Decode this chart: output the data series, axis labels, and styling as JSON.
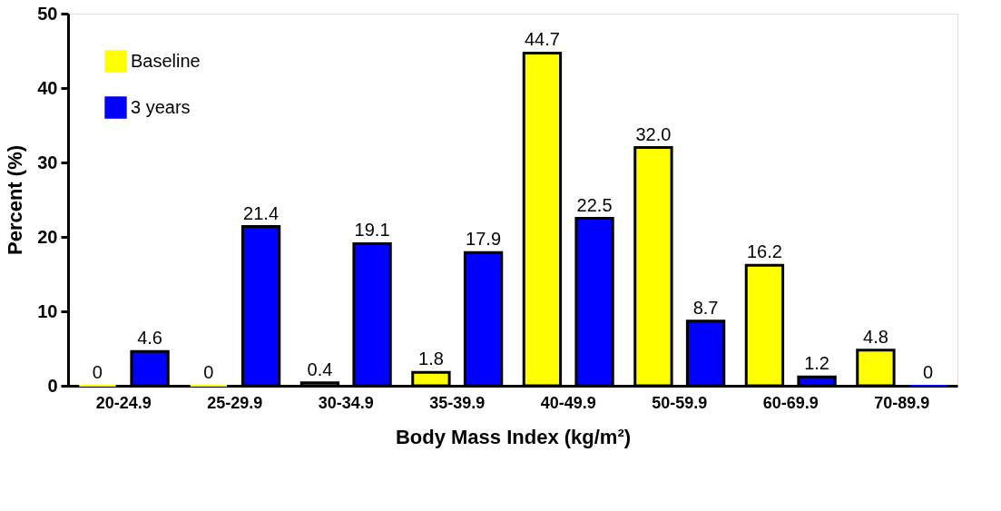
{
  "chart_data": {
    "type": "bar",
    "xlabel": "Body Mass  Index (kg/m²)",
    "ylabel": "Percent (%)",
    "categories": [
      "20-24.9",
      "25-29.9",
      "30-34.9",
      "35-39.9",
      "40-49.9",
      "50-59.9",
      "60-69.9",
      "70-89.9"
    ],
    "series": [
      {
        "name": "Baseline",
        "color": "#ffff00",
        "values": [
          0,
          0,
          0.4,
          1.8,
          44.7,
          32.0,
          16.2,
          4.8
        ],
        "value_labels": [
          "0",
          "0",
          "0.4",
          "1.8",
          "44.7",
          "32.0",
          "16.2",
          "4.8"
        ]
      },
      {
        "name": "3 years",
        "color": "#0000ff",
        "values": [
          4.6,
          21.4,
          19.1,
          17.9,
          22.5,
          8.7,
          1.2,
          0
        ],
        "value_labels": [
          "4.6",
          "21.4",
          "19.1",
          "17.9",
          "22.5",
          "8.7",
          "1.2",
          "0"
        ]
      }
    ],
    "ylim": [
      0,
      50
    ],
    "yticks": [
      0,
      10,
      20,
      30,
      40,
      50
    ],
    "grid": false,
    "legend": "top left"
  }
}
